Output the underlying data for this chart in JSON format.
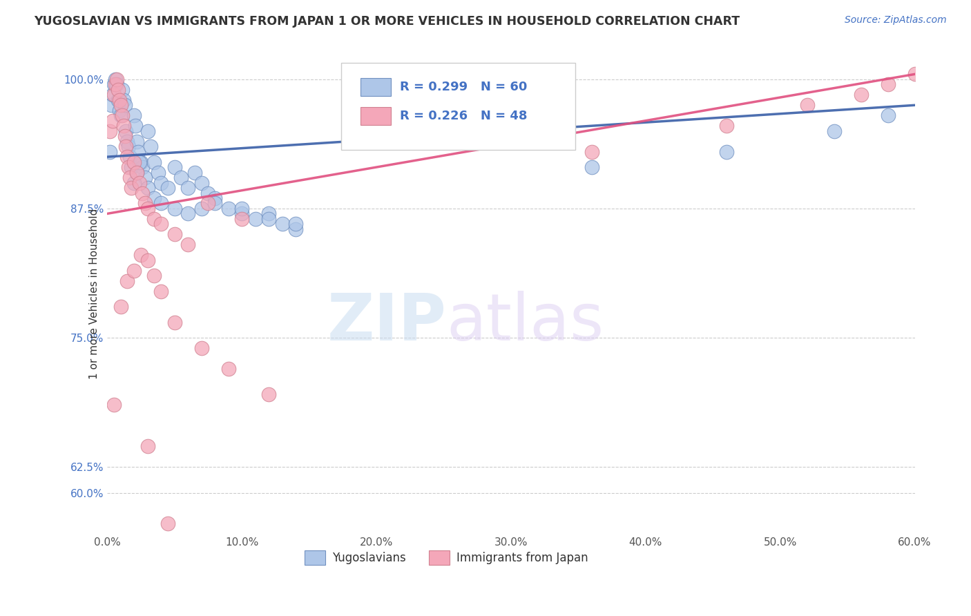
{
  "title": "YUGOSLAVIAN VS IMMIGRANTS FROM JAPAN 1 OR MORE VEHICLES IN HOUSEHOLD CORRELATION CHART",
  "source": "Source: ZipAtlas.com",
  "xlabel_vals": [
    0.0,
    10.0,
    20.0,
    30.0,
    40.0,
    50.0,
    60.0
  ],
  "ylabel_vals": [
    60.0,
    62.5,
    75.0,
    87.5,
    100.0
  ],
  "ylabel_label": "1 or more Vehicles in Household",
  "R_blue": 0.299,
  "N_blue": 60,
  "R_pink": 0.226,
  "N_pink": 48,
  "blue_line_color": "#3a5fa8",
  "pink_line_color": "#e05080",
  "blue_scatter_color": "#aec6e8",
  "pink_scatter_color": "#f4a7b9",
  "blue_dot_edge": "#7090c0",
  "pink_dot_edge": "#d08090",
  "watermark_zip": "ZIP",
  "watermark_atlas": "atlas",
  "xmin": 0.0,
  "xmax": 60.0,
  "ymin": 56.0,
  "ymax": 102.5,
  "blue_scatter_x": [
    0.2,
    0.3,
    0.4,
    0.5,
    0.6,
    0.7,
    0.8,
    0.9,
    1.0,
    1.1,
    1.2,
    1.3,
    1.4,
    1.5,
    1.6,
    1.7,
    1.8,
    2.0,
    2.1,
    2.2,
    2.3,
    2.5,
    2.6,
    2.8,
    3.0,
    3.2,
    3.5,
    3.8,
    4.0,
    4.5,
    5.0,
    5.5,
    6.0,
    6.5,
    7.0,
    7.5,
    8.0,
    9.0,
    10.0,
    11.0,
    12.0,
    13.0,
    14.0,
    2.0,
    2.2,
    2.4,
    3.0,
    3.5,
    4.0,
    5.0,
    6.0,
    7.0,
    8.0,
    10.0,
    12.0,
    14.0,
    36.0,
    46.0,
    54.0,
    58.0
  ],
  "blue_scatter_y": [
    93.0,
    97.5,
    98.5,
    99.5,
    100.0,
    99.5,
    98.0,
    97.0,
    96.5,
    99.0,
    98.0,
    97.5,
    95.0,
    94.0,
    93.5,
    92.5,
    91.5,
    96.5,
    95.5,
    94.0,
    93.0,
    92.0,
    91.5,
    90.5,
    95.0,
    93.5,
    92.0,
    91.0,
    90.0,
    89.5,
    91.5,
    90.5,
    89.5,
    91.0,
    90.0,
    89.0,
    88.5,
    87.5,
    87.0,
    86.5,
    87.0,
    86.0,
    85.5,
    90.0,
    91.0,
    92.0,
    89.5,
    88.5,
    88.0,
    87.5,
    87.0,
    87.5,
    88.0,
    87.5,
    86.5,
    86.0,
    91.5,
    93.0,
    95.0,
    96.5
  ],
  "pink_scatter_x": [
    0.2,
    0.4,
    0.5,
    0.6,
    0.7,
    0.8,
    0.9,
    1.0,
    1.1,
    1.2,
    1.3,
    1.4,
    1.5,
    1.6,
    1.7,
    1.8,
    2.0,
    2.2,
    2.4,
    2.6,
    2.8,
    3.0,
    3.5,
    4.0,
    5.0,
    6.0,
    7.5,
    10.0,
    36.0,
    46.0,
    52.0,
    56.0,
    58.0,
    60.0,
    0.5,
    1.0,
    1.5,
    2.0,
    2.5,
    3.0,
    3.5,
    4.0,
    5.0,
    7.0,
    9.0,
    12.0,
    3.0,
    4.5
  ],
  "pink_scatter_y": [
    95.0,
    96.0,
    98.5,
    99.5,
    100.0,
    99.0,
    98.0,
    97.5,
    96.5,
    95.5,
    94.5,
    93.5,
    92.5,
    91.5,
    90.5,
    89.5,
    92.0,
    91.0,
    90.0,
    89.0,
    88.0,
    87.5,
    86.5,
    86.0,
    85.0,
    84.0,
    88.0,
    86.5,
    93.0,
    95.5,
    97.5,
    98.5,
    99.5,
    100.5,
    68.5,
    78.0,
    80.5,
    81.5,
    83.0,
    82.5,
    81.0,
    79.5,
    76.5,
    74.0,
    72.0,
    69.5,
    64.5,
    57.0
  ]
}
